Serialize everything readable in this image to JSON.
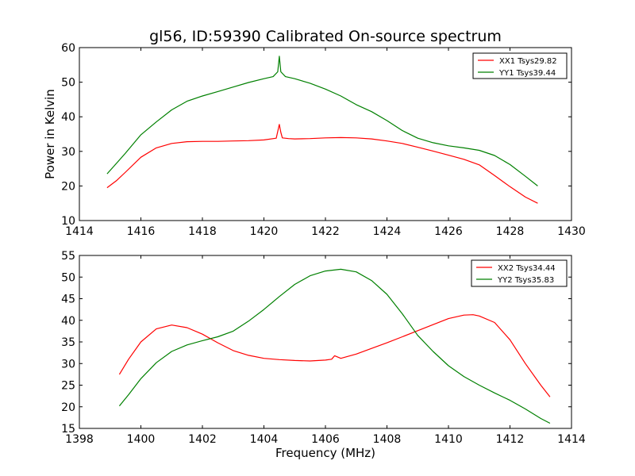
{
  "figure": {
    "title": "gl56, ID:59390 Calibrated On-source spectrum",
    "ylabel": "Power in Kelvin",
    "xlabel": "Frequency (MHz)"
  },
  "chart_data": [
    {
      "type": "line",
      "xlim": [
        1414,
        1430
      ],
      "ylim": [
        10,
        60
      ],
      "xticks": [
        1414,
        1416,
        1418,
        1420,
        1422,
        1424,
        1426,
        1428,
        1430
      ],
      "yticks": [
        10,
        20,
        30,
        40,
        50,
        60
      ],
      "grid": false,
      "legend_position": "top-right",
      "series": [
        {
          "name": "XX1 Tsys29.82",
          "color": "#ff0000",
          "x": [
            1414.9,
            1415.2,
            1415.5,
            1416.0,
            1416.5,
            1417.0,
            1417.5,
            1418.0,
            1418.5,
            1419.0,
            1419.5,
            1420.0,
            1420.4,
            1420.5,
            1420.55,
            1420.6,
            1420.8,
            1421.0,
            1421.5,
            1422.0,
            1422.5,
            1423.0,
            1423.5,
            1424.0,
            1424.5,
            1425.0,
            1425.5,
            1426.0,
            1426.5,
            1427.0,
            1427.5,
            1428.0,
            1428.5,
            1428.9
          ],
          "y": [
            19.5,
            21.5,
            24.0,
            28.3,
            31.0,
            32.3,
            32.8,
            32.9,
            32.9,
            33.0,
            33.1,
            33.3,
            33.8,
            37.8,
            35.5,
            33.9,
            33.7,
            33.6,
            33.7,
            33.9,
            34.0,
            33.9,
            33.6,
            33.0,
            32.3,
            31.2,
            30.1,
            28.9,
            27.7,
            26.1,
            23.0,
            19.8,
            16.8,
            15.0
          ]
        },
        {
          "name": "YY1 Tsys39.44",
          "color": "#008000",
          "x": [
            1414.9,
            1415.2,
            1415.5,
            1416.0,
            1416.5,
            1417.0,
            1417.5,
            1418.0,
            1418.5,
            1419.0,
            1419.5,
            1420.0,
            1420.3,
            1420.45,
            1420.5,
            1420.55,
            1420.7,
            1421.0,
            1421.5,
            1422.0,
            1422.5,
            1423.0,
            1423.5,
            1424.0,
            1424.5,
            1425.0,
            1425.5,
            1426.0,
            1426.5,
            1427.0,
            1427.5,
            1428.0,
            1428.5,
            1428.9
          ],
          "y": [
            23.5,
            26.5,
            29.5,
            34.8,
            38.5,
            42.0,
            44.5,
            46.0,
            47.3,
            48.6,
            49.9,
            51.0,
            51.6,
            53.0,
            57.5,
            53.0,
            51.6,
            51.0,
            49.7,
            48.0,
            46.0,
            43.5,
            41.5,
            38.9,
            36.0,
            33.8,
            32.5,
            31.6,
            31.0,
            30.3,
            28.8,
            26.2,
            22.8,
            20.0
          ]
        }
      ]
    },
    {
      "type": "line",
      "xlim": [
        1398,
        1414
      ],
      "ylim": [
        15,
        55
      ],
      "xticks": [
        1398,
        1400,
        1402,
        1404,
        1406,
        1408,
        1410,
        1412,
        1414
      ],
      "yticks": [
        15,
        20,
        25,
        30,
        35,
        40,
        45,
        50,
        55
      ],
      "grid": false,
      "legend_position": "top-right",
      "series": [
        {
          "name": "XX2 Tsys34.44",
          "color": "#ff0000",
          "x": [
            1399.3,
            1399.6,
            1400.0,
            1400.5,
            1401.0,
            1401.5,
            1402.0,
            1402.5,
            1403.0,
            1403.5,
            1404.0,
            1404.5,
            1405.0,
            1405.5,
            1406.0,
            1406.2,
            1406.3,
            1406.5,
            1407.0,
            1407.5,
            1408.0,
            1408.5,
            1409.0,
            1409.5,
            1410.0,
            1410.5,
            1410.8,
            1411.0,
            1411.5,
            1412.0,
            1412.5,
            1413.0,
            1413.3
          ],
          "y": [
            27.5,
            31.0,
            35.0,
            38.0,
            38.9,
            38.3,
            36.8,
            34.8,
            33.0,
            31.9,
            31.2,
            30.9,
            30.7,
            30.6,
            30.8,
            31.0,
            31.8,
            31.2,
            32.2,
            33.5,
            34.8,
            36.2,
            37.6,
            39.0,
            40.4,
            41.2,
            41.3,
            41.0,
            39.5,
            35.5,
            30.0,
            25.0,
            22.3
          ]
        },
        {
          "name": "YY2 Tsys35.83",
          "color": "#008000",
          "x": [
            1399.3,
            1399.6,
            1400.0,
            1400.5,
            1401.0,
            1401.5,
            1402.0,
            1402.5,
            1403.0,
            1403.5,
            1404.0,
            1404.5,
            1405.0,
            1405.5,
            1406.0,
            1406.5,
            1407.0,
            1407.5,
            1408.0,
            1408.5,
            1409.0,
            1409.5,
            1410.0,
            1410.5,
            1411.0,
            1411.5,
            1412.0,
            1412.5,
            1413.0,
            1413.3
          ],
          "y": [
            20.2,
            22.8,
            26.5,
            30.2,
            32.8,
            34.3,
            35.3,
            36.2,
            37.5,
            39.8,
            42.5,
            45.5,
            48.3,
            50.3,
            51.4,
            51.8,
            51.2,
            49.2,
            46.0,
            41.5,
            36.5,
            32.8,
            29.5,
            27.0,
            25.0,
            23.2,
            21.5,
            19.5,
            17.3,
            16.2
          ]
        }
      ]
    }
  ]
}
